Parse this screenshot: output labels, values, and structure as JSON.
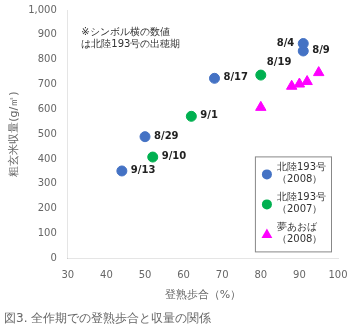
{
  "chart_data": {
    "type": "scatter",
    "title": "図3. 全作期での登熟歩合と収量の関係",
    "xlabel": "登熟歩合（%）",
    "ylabel": "粗玄米収量(g/㎡)",
    "annotation": "※シンボル横の数値\nは北陸193号の出穂期",
    "xlim": [
      30,
      100
    ],
    "ylim": [
      0,
      1000
    ],
    "xticks": [
      30,
      40,
      50,
      60,
      70,
      80,
      90,
      100
    ],
    "yticks": [
      0,
      100,
      200,
      300,
      400,
      500,
      600,
      700,
      800,
      900,
      1000
    ],
    "grid": false,
    "legend": "lower right",
    "series": [
      {
        "name": "北陸193号\n（2008）",
        "color": "#4472C4",
        "marker": "circle",
        "x": [
          44,
          50,
          68,
          91,
          91
        ],
        "y": [
          352,
          490,
          725,
          835,
          865
        ],
        "point_labels": [
          "9/13",
          "8/29",
          "8/17",
          "8/9",
          "8/4"
        ]
      },
      {
        "name": "北陸193号\n（2007）",
        "color": "#00B050",
        "marker": "circle",
        "x": [
          52,
          62,
          80
        ],
        "y": [
          408,
          572,
          738
        ],
        "point_labels": [
          "9/10",
          "9/1",
          "8/19"
        ]
      },
      {
        "name": "夢あおば\n（2008）",
        "color": "#FF00FF",
        "marker": "triangle",
        "x": [
          80,
          88,
          90,
          92,
          95
        ],
        "y": [
          608,
          693,
          702,
          712,
          748
        ]
      }
    ]
  }
}
